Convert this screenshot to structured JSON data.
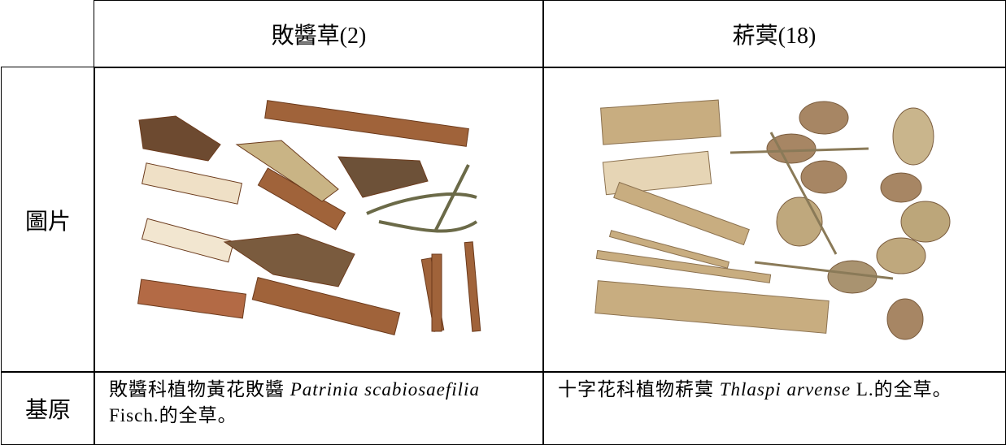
{
  "table": {
    "columns": [
      "敗醬草(2)",
      "菥蓂(18)"
    ],
    "rows": [
      {
        "label": "圖片"
      },
      {
        "label": "基原",
        "cells": [
          [
            {
              "text": "敗醬科植物黃花敗醬 "
            },
            {
              "text": "Patrinia scabiosaefilia",
              "italic": true
            },
            {
              "text": " Fisch.的全草。"
            }
          ],
          [
            {
              "text": "十字花科植物菥蓂 "
            },
            {
              "text": "Thlaspi arvense",
              "italic": true
            },
            {
              "text": " L.的全草。"
            }
          ]
        ]
      }
    ]
  }
}
